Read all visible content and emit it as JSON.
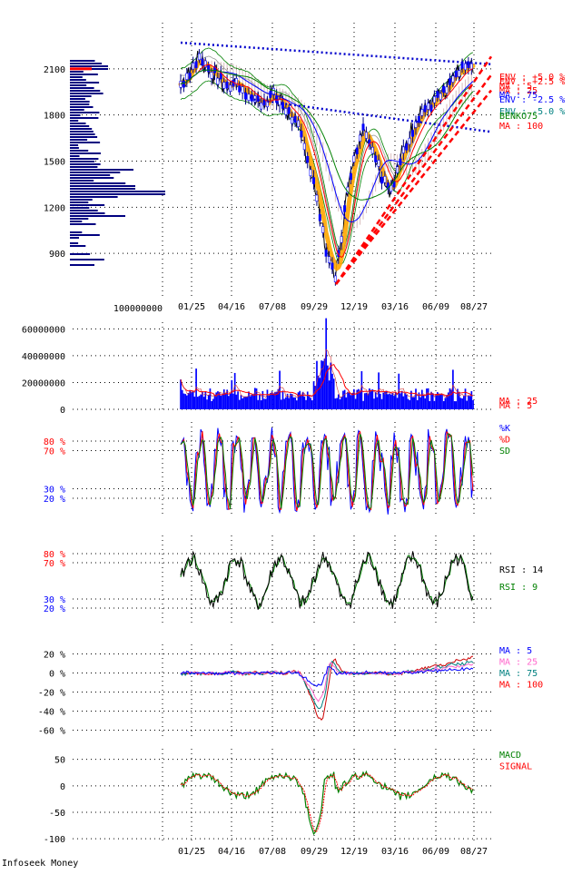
{
  "footer_text": "Infoseek Money",
  "colors": {
    "navy": "#000080",
    "blue": "#0000ff",
    "red": "#ff0000",
    "green": "#008000",
    "black": "#000000",
    "orange": "#ffa500",
    "pink": "#ff66cc",
    "teal": "#008080",
    "brightred": "#cc0000"
  },
  "chart_data": [
    {
      "type": "line",
      "panel": "price",
      "yticks": [
        900,
        1200,
        1500,
        1800,
        2100
      ],
      "ylim": [
        600,
        2400
      ],
      "highlight_price": 2100,
      "x_dates": [
        "01/25",
        "04/16",
        "07/08",
        "09/29",
        "12/19",
        "03/16",
        "06/09",
        "08/27"
      ],
      "volume_profile_label": "100000000",
      "legend": [
        {
          "text": "ENV : +5.0 %",
          "color": "#ff0000"
        },
        {
          "text": "ENV : +2.5 %",
          "color": "#ff0000"
        },
        {
          "text": "MA : 5",
          "color": "#ff0000"
        },
        {
          "text": "MA : 25",
          "color": "#ff0000"
        },
        {
          "text": "MA : 75",
          "color": "#0000ff"
        },
        {
          "text": "ENV : -2.5 %",
          "color": "#0000ff"
        },
        {
          "text": "ENV : -5.0 %",
          "color": "#008080"
        },
        {
          "text": "BENKO75",
          "color": "#008000"
        },
        {
          "text": "MA : 100",
          "color": "#ff0000"
        }
      ],
      "price_path": [
        2000,
        2080,
        2170,
        2100,
        2050,
        1980,
        2020,
        1960,
        1900,
        1880,
        1930,
        1880,
        1800,
        1700,
        1500,
        1250,
        900,
        750,
        1200,
        1550,
        1700,
        1600,
        1400,
        1320,
        1500,
        1650,
        1800,
        1850,
        1900,
        1950,
        2050,
        2100,
        2120
      ],
      "trendlines": [
        {
          "from": [
            0,
            2270
          ],
          "to": [
            32,
            2130
          ],
          "color": "#0000cc",
          "style": "dotted"
        },
        {
          "from": [
            8,
            1900
          ],
          "to": [
            32,
            1690
          ],
          "color": "#0000cc",
          "style": "dotted"
        },
        {
          "from": [
            17,
            700
          ],
          "to": [
            32,
            2180
          ],
          "color": "#ff0000",
          "style": "dashed"
        },
        {
          "from": [
            17,
            700
          ],
          "to": [
            32,
            2060
          ],
          "color": "#ff0000",
          "style": "dashed"
        },
        {
          "from": [
            17,
            700
          ],
          "to": [
            32,
            1960
          ],
          "color": "#ff0000",
          "style": "dashed"
        }
      ]
    },
    {
      "type": "bar",
      "panel": "volume",
      "yticks": [
        0,
        20000000,
        40000000,
        60000000
      ],
      "ytick_labels": [
        "0",
        "20000000",
        "40000000",
        "60000000"
      ],
      "ylim": [
        0,
        65000000
      ],
      "legend": [
        {
          "text": "MA : 25",
          "color": "#ff0000"
        },
        {
          "text": "MA : 5",
          "color": "#ff0000"
        }
      ]
    },
    {
      "type": "line",
      "panel": "stochastics",
      "ytick_labels": [
        {
          "value": 80,
          "text": "80 %",
          "color": "#ff0000"
        },
        {
          "value": 70,
          "text": "70 %",
          "color": "#ff0000"
        },
        {
          "value": 30,
          "text": "30 %",
          "color": "#0000ff"
        },
        {
          "value": 20,
          "text": "20 %",
          "color": "#0000ff"
        }
      ],
      "ylim": [
        0,
        100
      ],
      "legend": [
        {
          "text": "%K",
          "color": "#0000ff"
        },
        {
          "text": "%D",
          "color": "#ff0000"
        },
        {
          "text": "SD",
          "color": "#008000"
        }
      ]
    },
    {
      "type": "line",
      "panel": "rsi",
      "ytick_labels": [
        {
          "value": 80,
          "text": "80 %",
          "color": "#ff0000"
        },
        {
          "value": 70,
          "text": "70 %",
          "color": "#ff0000"
        },
        {
          "value": 30,
          "text": "30 %",
          "color": "#0000ff"
        },
        {
          "value": 20,
          "text": "20 %",
          "color": "#0000ff"
        }
      ],
      "ylim": [
        0,
        100
      ],
      "legend": [
        {
          "text": "RSI : 14",
          "color": "#000000"
        },
        {
          "text": "RSI : 9",
          "color": "#008000"
        }
      ]
    },
    {
      "type": "line",
      "panel": "deviation",
      "ytick_labels": [
        {
          "value": 20,
          "text": "20 %"
        },
        {
          "value": 0,
          "text": "0 %"
        },
        {
          "value": -20,
          "text": "-20 %"
        },
        {
          "value": -40,
          "text": "-40 %"
        },
        {
          "value": -60,
          "text": "-60 %"
        }
      ],
      "ylim": [
        -70,
        30
      ],
      "legend": [
        {
          "text": "MA : 5",
          "color": "#0000ff"
        },
        {
          "text": "MA : 25",
          "color": "#ff66cc"
        },
        {
          "text": "MA : 75",
          "color": "#008080"
        },
        {
          "text": "MA : 100",
          "color": "#ff0000"
        }
      ]
    },
    {
      "type": "line",
      "panel": "macd",
      "ytick_labels": [
        {
          "value": 50,
          "text": "50"
        },
        {
          "value": 0,
          "text": "0"
        },
        {
          "value": -50,
          "text": "-50"
        },
        {
          "value": -100,
          "text": "-100"
        }
      ],
      "ylim": [
        -110,
        70
      ],
      "legend": [
        {
          "text": "MACD",
          "color": "#008000"
        },
        {
          "text": "SIGNAL",
          "color": "#ff0000"
        }
      ]
    }
  ]
}
